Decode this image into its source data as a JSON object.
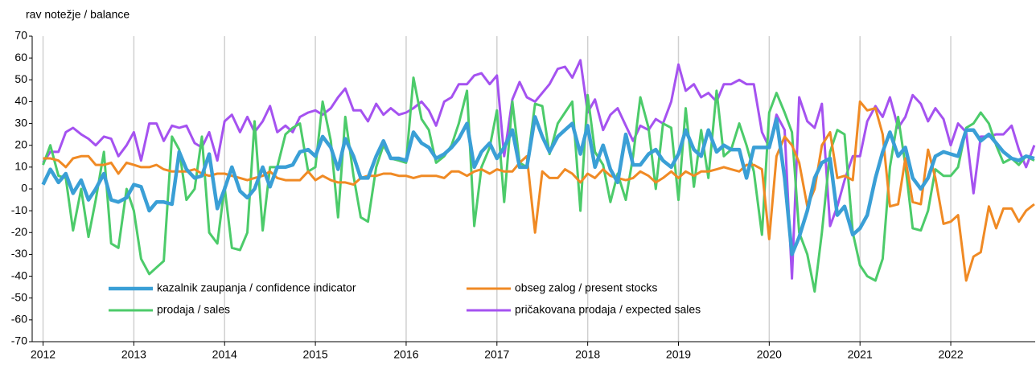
{
  "chart_data": {
    "type": "line",
    "y_label": "rav notežje / balance",
    "x": [
      2012,
      2012.08,
      2012.17,
      2012.25,
      2012.33,
      2012.42,
      2012.5,
      2012.58,
      2012.67,
      2012.75,
      2012.83,
      2012.92,
      2013,
      2013.08,
      2013.17,
      2013.25,
      2013.33,
      2013.42,
      2013.5,
      2013.58,
      2013.67,
      2013.75,
      2013.83,
      2013.92,
      2014,
      2014.08,
      2014.17,
      2014.25,
      2014.33,
      2014.42,
      2014.5,
      2014.58,
      2014.67,
      2014.75,
      2014.83,
      2014.92,
      2015,
      2015.08,
      2015.17,
      2015.25,
      2015.33,
      2015.42,
      2015.5,
      2015.58,
      2015.67,
      2015.75,
      2015.83,
      2015.92,
      2016,
      2016.08,
      2016.17,
      2016.25,
      2016.33,
      2016.42,
      2016.5,
      2016.58,
      2016.67,
      2016.75,
      2016.83,
      2016.92,
      2017,
      2017.08,
      2017.17,
      2017.25,
      2017.33,
      2017.42,
      2017.5,
      2017.58,
      2017.67,
      2017.75,
      2017.83,
      2017.92,
      2018,
      2018.08,
      2018.17,
      2018.25,
      2018.33,
      2018.42,
      2018.5,
      2018.58,
      2018.67,
      2018.75,
      2018.83,
      2018.92,
      2019,
      2019.08,
      2019.17,
      2019.25,
      2019.33,
      2019.42,
      2019.5,
      2019.58,
      2019.67,
      2019.75,
      2019.83,
      2019.92,
      2020,
      2020.08,
      2020.17,
      2020.25,
      2020.33,
      2020.42,
      2020.5,
      2020.58,
      2020.67,
      2020.75,
      2020.83,
      2020.92,
      2021,
      2021.08,
      2021.17,
      2021.25,
      2021.33,
      2021.42,
      2021.5,
      2021.58,
      2021.67,
      2021.75,
      2021.83,
      2021.92,
      2022,
      2022.08,
      2022.17,
      2022.25,
      2022.33,
      2022.42,
      2022.5,
      2022.58,
      2022.67,
      2022.75,
      2022.83,
      2022.92
    ],
    "series": [
      {
        "name": "kazalnik zaupanja / confidence indicator",
        "color": "#3a9fd6",
        "values": [
          2,
          9,
          3,
          7,
          -2,
          4,
          -5,
          0,
          7,
          -5,
          -6,
          -4,
          2,
          1,
          -10,
          -6,
          -6,
          -7,
          17,
          9,
          5,
          6,
          16,
          -9,
          0,
          10,
          -1,
          -4,
          0,
          10,
          1,
          10,
          10,
          11,
          17,
          18,
          15,
          24,
          19,
          9,
          23,
          15,
          5,
          5,
          15,
          22,
          14,
          14,
          13,
          26,
          21,
          19,
          14,
          16,
          19,
          23,
          30,
          10,
          17,
          21,
          14,
          19,
          27,
          10,
          10,
          33,
          24,
          17,
          24,
          27,
          30,
          16,
          29,
          10,
          20,
          9,
          3,
          25,
          11,
          11,
          16,
          18,
          13,
          10,
          16,
          27,
          18,
          15,
          27,
          17,
          20,
          18,
          18,
          5,
          19,
          19,
          19,
          32,
          5,
          -30,
          -22,
          -10,
          5,
          12,
          14,
          -12,
          -8,
          -21,
          -18,
          -12,
          5,
          17,
          26,
          15,
          19,
          5,
          0,
          5,
          15,
          17,
          16,
          15,
          27,
          27,
          22,
          25,
          21,
          17,
          14,
          13,
          15,
          14
        ]
      },
      {
        "name": "obseg zalog / present stocks",
        "color": "#f08a24",
        "values": [
          14,
          14,
          13,
          10,
          14,
          15,
          15,
          11,
          11,
          12,
          7,
          12,
          11,
          10,
          10,
          11,
          9,
          8,
          8,
          8,
          9,
          7,
          6,
          7,
          7,
          6,
          5,
          4,
          5,
          6,
          8,
          5,
          4,
          4,
          4,
          8,
          4,
          6,
          4,
          3,
          3,
          2,
          5,
          6,
          6,
          7,
          7,
          6,
          6,
          5,
          6,
          6,
          6,
          5,
          8,
          8,
          6,
          8,
          9,
          7,
          9,
          8,
          8,
          12,
          15,
          -20,
          8,
          5,
          5,
          9,
          7,
          3,
          7,
          5,
          9,
          6,
          5,
          4,
          5,
          8,
          6,
          3,
          5,
          8,
          5,
          8,
          6,
          8,
          8,
          9,
          10,
          9,
          8,
          11,
          11,
          9,
          -23,
          15,
          24,
          20,
          12,
          -8,
          0,
          20,
          26,
          5,
          6,
          4,
          40,
          36,
          37,
          25,
          -8,
          -7,
          14,
          -6,
          -7,
          18,
          5,
          -16,
          -15,
          -12,
          -42,
          -31,
          -29,
          -8,
          -18,
          -9,
          -9,
          -15,
          -10,
          -7
        ]
      },
      {
        "name": "prodaja / sales",
        "color": "#4ccb6a",
        "values": [
          11,
          20,
          6,
          5,
          -19,
          0,
          -22,
          -5,
          17,
          -25,
          -27,
          0,
          -10,
          -32,
          -39,
          -36,
          -33,
          24,
          18,
          -5,
          0,
          24,
          -20,
          -25,
          1,
          -27,
          -28,
          -20,
          31,
          -19,
          10,
          10,
          25,
          28,
          30,
          8,
          10,
          40,
          22,
          -13,
          33,
          6,
          -13,
          -15,
          10,
          20,
          14,
          13,
          12,
          51,
          32,
          27,
          12,
          15,
          20,
          30,
          45,
          -17,
          10,
          19,
          36,
          -6,
          40,
          12,
          10,
          39,
          38,
          16,
          30,
          35,
          40,
          -10,
          43,
          17,
          11,
          -6,
          7,
          -5,
          15,
          42,
          28,
          0,
          30,
          28,
          -5,
          37,
          1,
          27,
          5,
          45,
          15,
          18,
          30,
          20,
          8,
          -21,
          35,
          44,
          35,
          26,
          -20,
          -30,
          -47,
          -20,
          17,
          27,
          25,
          -20,
          -35,
          -40,
          -42,
          -32,
          10,
          33,
          11,
          -18,
          -19,
          -10,
          9,
          6,
          6,
          10,
          28,
          30,
          35,
          30,
          20,
          12,
          14,
          11,
          15,
          13
        ]
      },
      {
        "name": "pričakovana prodaja / expected sales",
        "color": "#a552f0",
        "values": [
          12,
          17,
          17,
          26,
          28,
          25,
          23,
          20,
          24,
          23,
          15,
          20,
          26,
          13,
          30,
          30,
          22,
          29,
          28,
          29,
          21,
          19,
          26,
          13,
          31,
          34,
          26,
          33,
          26,
          31,
          38,
          26,
          29,
          26,
          33,
          35,
          36,
          34,
          37,
          42,
          46,
          36,
          36,
          31,
          39,
          34,
          37,
          34,
          35,
          37,
          40,
          36,
          29,
          40,
          42,
          48,
          48,
          52,
          53,
          48,
          52,
          15,
          41,
          49,
          42,
          40,
          44,
          48,
          55,
          56,
          51,
          59,
          35,
          41,
          27,
          34,
          37,
          29,
          22,
          29,
          27,
          32,
          30,
          40,
          57,
          45,
          48,
          42,
          44,
          40,
          48,
          48,
          50,
          48,
          48,
          26,
          19,
          34,
          27,
          -41,
          42,
          31,
          28,
          39,
          -17,
          -8,
          4,
          15,
          15,
          31,
          38,
          33,
          42,
          28,
          33,
          43,
          39,
          31,
          37,
          32,
          20,
          30,
          26,
          -2,
          24,
          24,
          25,
          25,
          29,
          18,
          10,
          20
        ]
      }
    ],
    "xlim": [
      2011.88,
      2022.93
    ],
    "xticks": [
      2012,
      2013,
      2014,
      2015,
      2016,
      2017,
      2018,
      2019,
      2020,
      2021,
      2022
    ],
    "ylim": [
      -70,
      70
    ],
    "yticks": [
      -70,
      -60,
      -50,
      -40,
      -30,
      -20,
      -10,
      0,
      10,
      20,
      30,
      40,
      50,
      60,
      70
    ],
    "grid": "x",
    "legend": "lower left"
  }
}
